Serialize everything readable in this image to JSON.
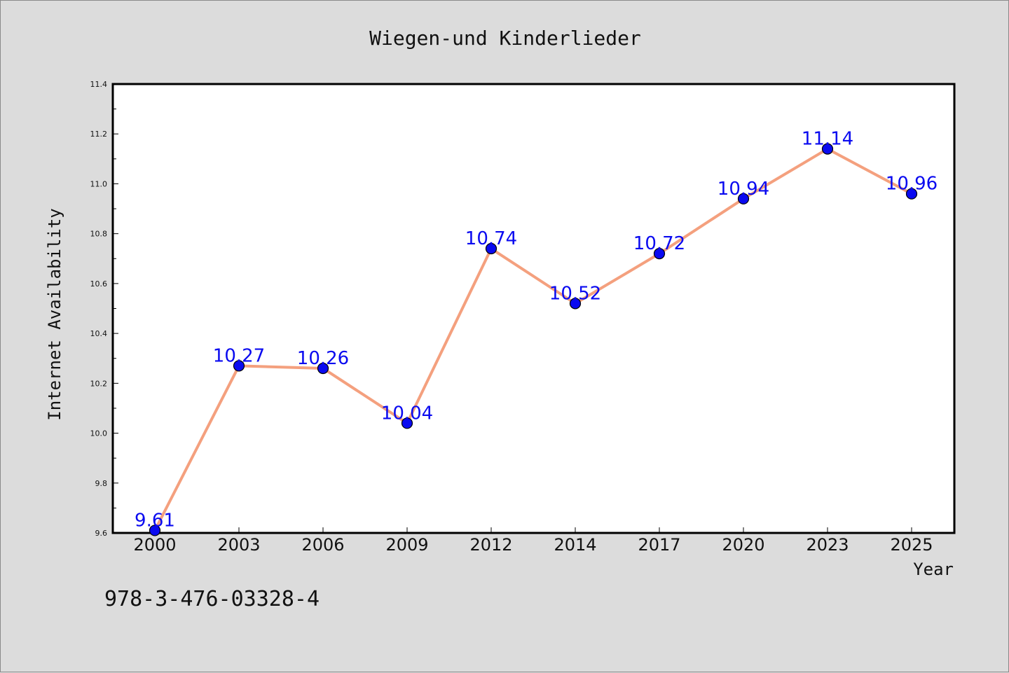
{
  "chart_data": {
    "type": "line",
    "title": "Wiegen-und Kinderlieder",
    "xlabel": "Year",
    "ylabel": "Internet Availability",
    "categories": [
      "2000",
      "2003",
      "2006",
      "2009",
      "2012",
      "2014",
      "2017",
      "2020",
      "2023",
      "2025"
    ],
    "series": [
      {
        "values": [
          9.61,
          10.27,
          10.26,
          10.04,
          10.74,
          10.52,
          10.72,
          10.94,
          11.14,
          10.96
        ]
      }
    ],
    "data_labels": [
      "9.61",
      "10.27",
      "10.26",
      "10.04",
      "10.74",
      "10.52",
      "10.72",
      "10.94",
      "11.14",
      "10.96"
    ],
    "ylim": [
      9.6,
      11.4
    ],
    "yticks": [
      "9.6",
      "9.8",
      "10.0",
      "10.2",
      "10.4",
      "10.6",
      "10.8",
      "11.0",
      "11.2",
      "11.4"
    ],
    "grid": false,
    "legend": "none",
    "line_color": "#f4a07e",
    "marker_color": "#0a0af0",
    "label_color": "#0a0af0"
  },
  "footer_text": "978-3-476-03328-4"
}
